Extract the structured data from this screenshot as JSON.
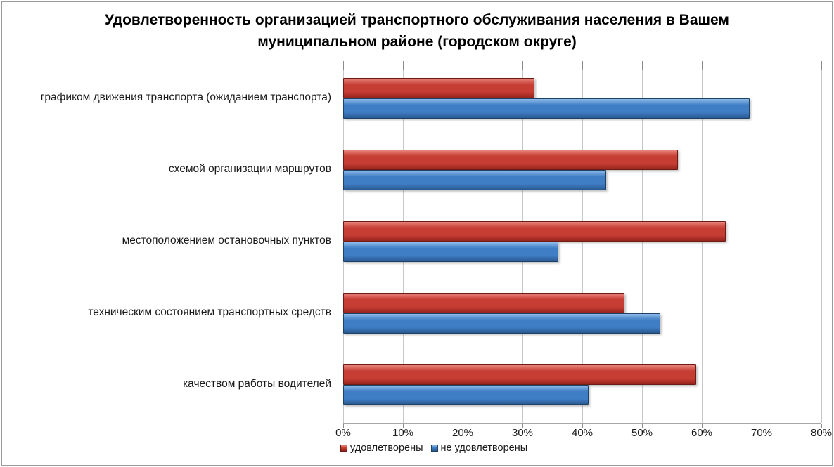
{
  "window": {
    "background": "#FFFFFF",
    "border_color": "#9B9B9B"
  },
  "chart_data": {
    "type": "bar",
    "orientation": "horizontal",
    "title": "Удовлетворенность организацией транспортного обслуживания населения в Вашем муниципальном районе (городском округе)",
    "categories": [
      "графиком движения транспорта (ожиданием транспорта)",
      "схемой организации маршрутов",
      "местоположением остановочных пунктов",
      "техническим состоянием транспортных средств",
      "качеством работы водителей"
    ],
    "series": [
      {
        "name": "удовлетворены",
        "values": [
          32,
          56,
          64,
          47,
          59
        ],
        "color": "#C63D33",
        "color_light": "#E8837A",
        "color_dark": "#97241D",
        "color_border": "#6D1B15"
      },
      {
        "name": "не удовлетворены",
        "values": [
          68,
          44,
          36,
          53,
          41
        ],
        "color": "#3F7DC4",
        "color_light": "#8FBBEA",
        "color_dark": "#2A5A92",
        "color_border": "#1E4166"
      }
    ],
    "x_axis": {
      "min": 0,
      "max": 80,
      "tick_step": 10,
      "tick_labels": [
        "0%",
        "10%",
        "20%",
        "30%",
        "40%",
        "50%",
        "60%",
        "70%",
        "80%"
      ]
    },
    "y_axis": {
      "label": ""
    },
    "grid": "vertical",
    "legend_position": "bottom-left",
    "colors": {
      "gridline": "#C8C8C8",
      "axis_line": "#A6A6A6",
      "tick_mark": "#8C8C8C",
      "text": "#1A1A1A",
      "title_text": "#000000"
    }
  }
}
